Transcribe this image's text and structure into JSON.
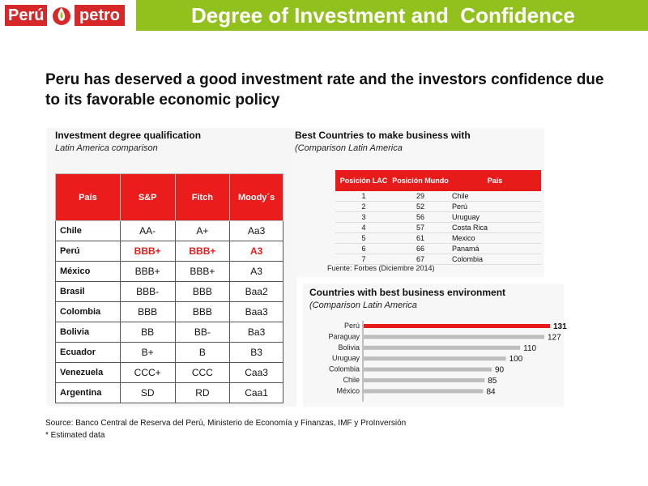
{
  "header": {
    "logo_left": "Perú",
    "logo_right": "petro",
    "title": "Degree of Investment and  Confidence"
  },
  "headline": "Peru has deserved a good investment rate and the investors confidence due to its favorable economic policy",
  "ratings": {
    "title": "Investment degree qualification",
    "subtitle": "Latin America comparison",
    "columns": [
      "País",
      "S&P",
      "Fitch",
      "Moody´s"
    ],
    "rows": [
      {
        "country": "Chile",
        "sp": "AA-",
        "fitch": "A+",
        "moodys": "Aa3"
      },
      {
        "country": "Perú",
        "sp": "BBB+",
        "fitch": "BBB+",
        "moodys": "A3"
      },
      {
        "country": "México",
        "sp": "BBB+",
        "fitch": "BBB+",
        "moodys": "A3"
      },
      {
        "country": "Brasil",
        "sp": "BBB-",
        "fitch": "BBB",
        "moodys": "Baa2"
      },
      {
        "country": "Colombia",
        "sp": "BBB",
        "fitch": "BBB",
        "moodys": "Baa3"
      },
      {
        "country": "Bolivia",
        "sp": "BB",
        "fitch": "BB-",
        "moodys": "Ba3"
      },
      {
        "country": "Ecuador",
        "sp": "B+",
        "fitch": "B",
        "moodys": "B3"
      },
      {
        "country": "Venezuela",
        "sp": "CCC+",
        "fitch": "CCC",
        "moodys": "Caa3"
      },
      {
        "country": "Argentina",
        "sp": "SD",
        "fitch": "RD",
        "moodys": "Caa1"
      }
    ]
  },
  "business": {
    "title": "Best Countries to make business with",
    "subtitle": "(Comparison Latin America",
    "columns": [
      "Posición LAC",
      "Posición Mundo",
      "País"
    ],
    "rows": [
      {
        "lac": "1",
        "world": "29",
        "country": "Chile"
      },
      {
        "lac": "2",
        "world": "52",
        "country": "Perú"
      },
      {
        "lac": "3",
        "world": "56",
        "country": "Uruguay"
      },
      {
        "lac": "4",
        "world": "57",
        "country": "Costa Rica"
      },
      {
        "lac": "5",
        "world": "61",
        "country": "Mexico"
      },
      {
        "lac": "6",
        "world": "66",
        "country": "Panamá"
      },
      {
        "lac": "7",
        "world": "67",
        "country": "Colombia"
      }
    ],
    "source": "Fuente: Forbes (Diciembre 2014)"
  },
  "environment": {
    "title": "Countries with best business environment",
    "subtitle": "(Comparison Latin America"
  },
  "chart_data": {
    "type": "bar",
    "orientation": "horizontal",
    "categories": [
      "Perú",
      "Paraguay",
      "Bolivia",
      "Uruguay",
      "Colombia",
      "Chile",
      "México"
    ],
    "values": [
      131,
      127,
      110,
      100,
      90,
      85,
      84
    ],
    "highlight": "Perú",
    "colors": {
      "highlight": "#e81b1b",
      "default": "#bdbdbd"
    },
    "xlim": [
      0,
      131
    ],
    "title": "",
    "xlabel": "",
    "ylabel": ""
  },
  "footer": {
    "source": "Source: Banco Central de Reserva del Perú, Ministerio de Economía y Finanzas, IMF y ProInversión",
    "note": "* Estimated data"
  }
}
